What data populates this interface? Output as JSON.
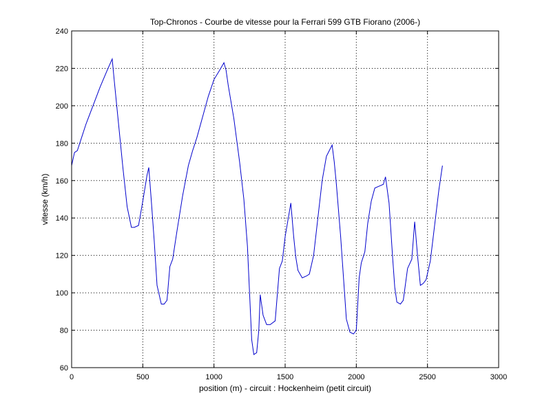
{
  "chart_data": {
    "type": "line",
    "title": "Top-Chronos - Courbe de vitesse pour la Ferrari 599 GTB Fiorano (2006-)",
    "xlabel": "position (m) - circuit : Hockenheim (petit circuit)",
    "ylabel": "vitesse (km/h)",
    "xlim": [
      0,
      3000
    ],
    "ylim": [
      60,
      240
    ],
    "xticks": [
      0,
      500,
      1000,
      1500,
      2000,
      2500,
      3000
    ],
    "yticks": [
      60,
      80,
      100,
      120,
      140,
      160,
      180,
      200,
      220,
      240
    ],
    "grid": true,
    "line_color": "#0000cc",
    "series": [
      {
        "x": [
          0,
          20,
          40,
          70,
          100,
          150,
          200,
          250,
          285,
          300,
          330,
          360,
          390,
          420,
          440,
          470,
          500,
          530,
          542,
          560,
          580,
          600,
          630,
          650,
          670,
          690,
          710,
          740,
          780,
          820,
          850,
          880,
          920,
          960,
          1000,
          1040,
          1070,
          1085,
          1100,
          1140,
          1180,
          1210,
          1235,
          1250,
          1265,
          1280,
          1300,
          1315,
          1325,
          1345,
          1370,
          1395,
          1430,
          1460,
          1480,
          1500,
          1540,
          1560,
          1575,
          1590,
          1620,
          1650,
          1670,
          1700,
          1730,
          1760,
          1790,
          1810,
          1830,
          1845,
          1860,
          1890,
          1910,
          1930,
          1955,
          1980,
          2000,
          2020,
          2035,
          2060,
          2080,
          2105,
          2130,
          2160,
          2190,
          2205,
          2230,
          2255,
          2270,
          2285,
          2310,
          2330,
          2360,
          2390,
          2410,
          2430,
          2450,
          2470,
          2490,
          2520,
          2550,
          2580,
          2605
        ],
        "y": [
          168,
          175,
          176,
          183,
          190,
          200,
          210,
          219,
          225,
          213,
          190,
          167,
          146,
          135,
          135,
          136,
          149,
          163,
          167,
          149,
          128,
          104,
          94,
          94,
          96,
          114,
          118,
          133,
          152,
          168,
          176,
          183,
          194,
          205,
          214,
          219,
          223,
          219,
          211,
          193,
          170,
          150,
          125,
          100,
          75,
          67,
          68,
          80,
          99,
          88,
          83,
          83,
          85,
          113,
          117,
          130,
          148,
          130,
          119,
          112,
          108,
          109,
          110,
          120,
          140,
          160,
          173,
          176,
          179,
          170,
          158,
          130,
          108,
          86,
          79,
          78,
          80,
          108,
          116,
          122,
          137,
          149,
          156,
          157,
          158,
          162,
          148,
          119,
          103,
          95,
          94,
          96,
          113,
          118,
          138,
          120,
          104,
          105,
          107,
          117,
          136,
          155,
          168
        ]
      }
    ]
  }
}
